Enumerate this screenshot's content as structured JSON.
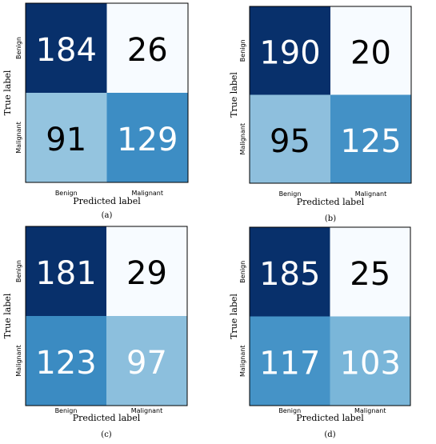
{
  "chart_data": [
    {
      "type": "heatmap",
      "panel_label": "(a)",
      "x_tick_labels": [
        "Benign",
        "Malignant"
      ],
      "y_tick_labels": [
        "Benign",
        "Malignant"
      ],
      "xlabel": "Predicted label",
      "ylabel": "True label",
      "matrix": [
        [
          184,
          26
        ],
        [
          91,
          129
        ]
      ],
      "cell_colors": [
        [
          "#08306b",
          "#f7fbff"
        ],
        [
          "#94c4df",
          "#3d8dc4"
        ]
      ],
      "text_colors": [
        [
          "#ffffff",
          "#000000"
        ],
        [
          "#000000",
          "#ffffff"
        ]
      ]
    },
    {
      "type": "heatmap",
      "panel_label": "(b)",
      "x_tick_labels": [
        "Benign",
        "Malignant"
      ],
      "y_tick_labels": [
        "Benign",
        "Malignant"
      ],
      "xlabel": "Predicted label",
      "ylabel": "True label",
      "matrix": [
        [
          190,
          20
        ],
        [
          95,
          125
        ]
      ],
      "cell_colors": [
        [
          "#08306b",
          "#f7fbff"
        ],
        [
          "#8ebfdd",
          "#4391c6"
        ]
      ],
      "text_colors": [
        [
          "#ffffff",
          "#000000"
        ],
        [
          "#000000",
          "#ffffff"
        ]
      ]
    },
    {
      "type": "heatmap",
      "panel_label": "(c)",
      "x_tick_labels": [
        "Benign",
        "Malignant"
      ],
      "y_tick_labels": [
        "Benign",
        "Malignant"
      ],
      "xlabel": "Predicted label",
      "ylabel": "True label",
      "matrix": [
        [
          181,
          29
        ],
        [
          123,
          97
        ]
      ],
      "cell_colors": [
        [
          "#08306b",
          "#f7fbff"
        ],
        [
          "#3b8bc2",
          "#8cbfdd"
        ]
      ],
      "text_colors": [
        [
          "#ffffff",
          "#000000"
        ],
        [
          "#ffffff",
          "#ffffff"
        ]
      ]
    },
    {
      "type": "heatmap",
      "panel_label": "(d)",
      "x_tick_labels": [
        "Benign",
        "Malignant"
      ],
      "y_tick_labels": [
        "Benign",
        "Malignant"
      ],
      "xlabel": "Predicted label",
      "ylabel": "True label",
      "matrix": [
        [
          185,
          25
        ],
        [
          117,
          103
        ]
      ],
      "cell_colors": [
        [
          "#08306b",
          "#f7fbff"
        ],
        [
          "#4593c7",
          "#7ab6d9"
        ]
      ],
      "text_colors": [
        [
          "#ffffff",
          "#000000"
        ],
        [
          "#ffffff",
          "#ffffff"
        ]
      ]
    }
  ]
}
